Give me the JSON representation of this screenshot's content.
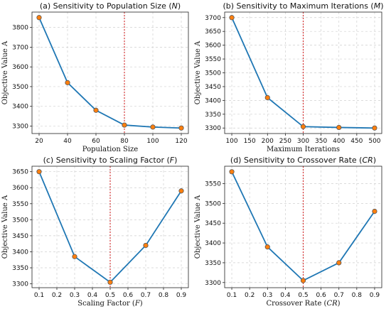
{
  "chart_data": [
    {
      "type": "line",
      "title": "(a) Sensitivity to Population Size (",
      "title_var": "N",
      "title_end": ")",
      "xlabel": "Population Size",
      "xlabel_var": "",
      "xlabel_end": "",
      "ylabel": "Objective Value A",
      "x": [
        20,
        40,
        60,
        80,
        100,
        120
      ],
      "values": [
        3850,
        3520,
        3380,
        3305,
        3295,
        3290
      ],
      "xticks": [
        20,
        40,
        60,
        80,
        100,
        120
      ],
      "yticks": [
        3300,
        3400,
        3500,
        3600,
        3700,
        3800
      ],
      "xlim": [
        15,
        125
      ],
      "ylim": [
        3262,
        3878
      ],
      "ref_x": 80,
      "grid": true
    },
    {
      "type": "line",
      "title": "(b) Sensitivity to Maximum Iterations (",
      "title_var": "M",
      "title_end": ")",
      "xlabel": "Maximum Iterations",
      "xlabel_var": "",
      "xlabel_end": "",
      "ylabel": "Objective Value A",
      "x": [
        100,
        200,
        300,
        400,
        500
      ],
      "values": [
        3700,
        3410,
        3305,
        3302,
        3300
      ],
      "xticks": [
        100,
        150,
        200,
        250,
        300,
        350,
        400,
        450,
        500
      ],
      "yticks": [
        3300,
        3350,
        3400,
        3450,
        3500,
        3550,
        3600,
        3650,
        3700
      ],
      "xlim": [
        80,
        520
      ],
      "ylim": [
        3280,
        3720
      ],
      "ref_x": 300,
      "grid": true
    },
    {
      "type": "line",
      "title": "(c) Sensitivity to Scaling Factor (",
      "title_var": "F",
      "title_end": ")",
      "xlabel": "Scaling Factor (",
      "xlabel_var": "F",
      "xlabel_end": ")",
      "ylabel": "Objective Value A",
      "x": [
        0.1,
        0.3,
        0.5,
        0.7,
        0.9
      ],
      "values": [
        3650,
        3385,
        3305,
        3420,
        3590
      ],
      "xticks": [
        0.1,
        0.2,
        0.3,
        0.4,
        0.5,
        0.6,
        0.7,
        0.8,
        0.9
      ],
      "yticks": [
        3300,
        3350,
        3400,
        3450,
        3500,
        3550,
        3600,
        3650
      ],
      "xlim": [
        0.06,
        0.94
      ],
      "ylim": [
        3288,
        3667
      ],
      "ref_x": 0.5,
      "grid": true
    },
    {
      "type": "line",
      "title": "(d) Sensitivity to Crossover Rate (",
      "title_var": "CR",
      "title_end": ")",
      "xlabel": "Crossover Rate (",
      "xlabel_var": "CR",
      "xlabel_end": ")",
      "ylabel": "Objective Value A",
      "x": [
        0.1,
        0.3,
        0.5,
        0.7,
        0.9
      ],
      "values": [
        3580,
        3390,
        3305,
        3350,
        3480
      ],
      "xticks": [
        0.1,
        0.2,
        0.3,
        0.4,
        0.5,
        0.6,
        0.7,
        0.8,
        0.9
      ],
      "yticks": [
        3300,
        3350,
        3400,
        3450,
        3500,
        3550
      ],
      "xlim": [
        0.06,
        0.94
      ],
      "ylim": [
        3287,
        3594
      ],
      "ref_x": 0.5,
      "grid": true
    }
  ]
}
